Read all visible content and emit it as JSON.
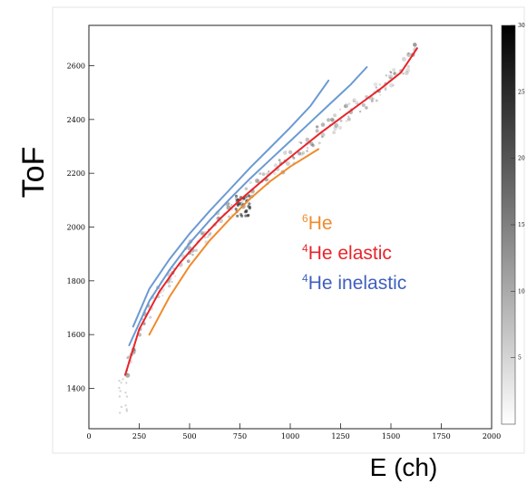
{
  "chart_data": {
    "type": "scatter",
    "xlabel": "E (ch)",
    "ylabel": "ToF",
    "xlim": [
      0,
      2000
    ],
    "ylim": [
      1250,
      2750
    ],
    "x_ticks": [
      "0",
      "250",
      "500",
      "750",
      "1000",
      "1250",
      "1500",
      "1750",
      "2000"
    ],
    "y_ticks": [
      "1400",
      "1600",
      "1800",
      "2000",
      "2200",
      "2400",
      "2600"
    ],
    "x_tick_values": [
      0,
      250,
      500,
      750,
      1000,
      1250,
      1500,
      1750,
      2000
    ],
    "y_tick_values": [
      1400,
      1600,
      1800,
      2000,
      2200,
      2400,
      2600
    ],
    "colorbar": {
      "range": [
        0,
        30
      ],
      "tick_labels": [
        "5",
        "10",
        "15",
        "20",
        "25",
        "30"
      ],
      "tick_values": [
        5,
        10,
        15,
        20,
        25,
        30
      ]
    },
    "legend": [
      {
        "prefix": "6",
        "text": "He",
        "color": "#f08a2c"
      },
      {
        "prefix": "4",
        "text": "He elastic",
        "color": "#e8252a"
      },
      {
        "prefix": "4",
        "text": "He inelastic",
        "color": "#3f5fbf"
      }
    ],
    "series": [
      {
        "name": "6He",
        "color": "#f08a2c",
        "x": [
          300,
          400,
          500,
          600,
          700,
          800,
          900,
          1000,
          1140
        ],
        "y": [
          1600,
          1740,
          1855,
          1950,
          2030,
          2105,
          2170,
          2225,
          2290
        ]
      },
      {
        "name": "4He elastic",
        "color": "#e8252a",
        "x": [
          180,
          250,
          350,
          450,
          550,
          650,
          750,
          850,
          950,
          1050,
          1150,
          1250,
          1350,
          1450,
          1550,
          1630
        ],
        "y": [
          1450,
          1620,
          1760,
          1865,
          1950,
          2030,
          2100,
          2165,
          2230,
          2290,
          2350,
          2405,
          2460,
          2515,
          2575,
          2665
        ]
      },
      {
        "name": "4He inelastic",
        "color": "#6b9ad2",
        "x": [
          200,
          300,
          400,
          500,
          600,
          700,
          800,
          900,
          1000,
          1100,
          1200,
          1300,
          1380
        ],
        "y": [
          1560,
          1725,
          1840,
          1940,
          2025,
          2105,
          2180,
          2250,
          2320,
          2390,
          2460,
          2530,
          2595
        ]
      },
      {
        "name": "4He inelastic",
        "color": "#6b9ad2",
        "x": [
          220,
          300,
          400,
          500,
          600,
          700,
          800,
          900,
          1000,
          1100,
          1190
        ],
        "y": [
          1630,
          1770,
          1880,
          1975,
          2060,
          2140,
          2220,
          2295,
          2370,
          2450,
          2545
        ]
      }
    ],
    "grid": false,
    "legend_placement": "center-right"
  }
}
